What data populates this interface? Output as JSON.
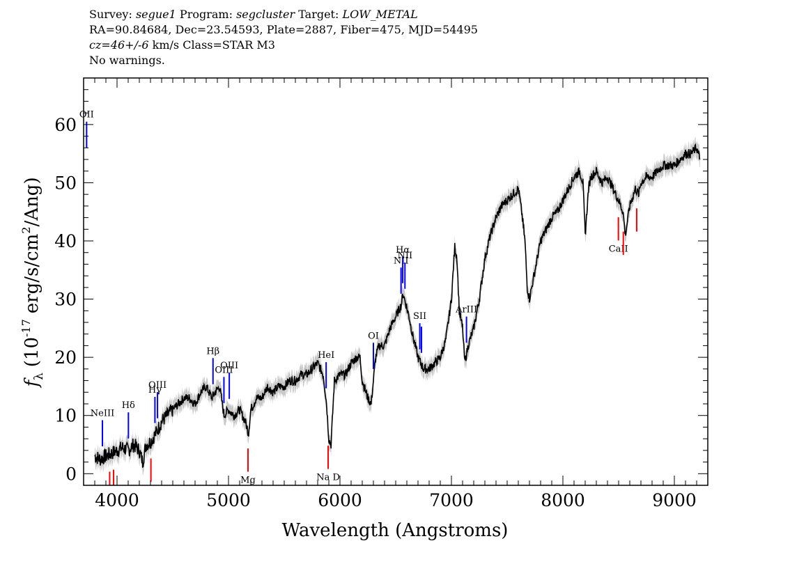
{
  "header": {
    "survey_label": "Survey:",
    "survey": "segue1",
    "program_label": "Program:",
    "program": "segcluster",
    "target_label": "Target:",
    "target": "LOW_METAL",
    "line2": "RA=90.84684, Dec=23.54593, Plate=2887, Fiber=475, MJD=54495",
    "cz": "cz=46+/-6",
    "line3_rest": "km/s Class=STAR M3",
    "line4": "No warnings."
  },
  "chart_data": {
    "type": "line",
    "title": "",
    "xlabel": "Wavelength (Angstroms)",
    "ylabel_main": "f",
    "ylabel_sub": "λ",
    "ylabel_rest": "(10",
    "ylabel_exp": "-17",
    "ylabel_units": "erg/s/cm",
    "ylabel_exp2": "2",
    "ylabel_tail": "/Ang)",
    "xlim": [
      3700,
      9300
    ],
    "ylim": [
      -2,
      68
    ],
    "grid": false,
    "x_ticks": [
      4000,
      5000,
      6000,
      7000,
      8000,
      9000
    ],
    "x_tick_labels": [
      "4000",
      "5000",
      "6000",
      "7000",
      "8000",
      "9000"
    ],
    "y_ticks": [
      0,
      10,
      20,
      30,
      40,
      50,
      60
    ],
    "y_tick_labels": [
      "0",
      "10",
      "20",
      "30",
      "40",
      "50",
      "60"
    ],
    "series": [
      {
        "color": "#000000",
        "error_color": "#c8c8c8",
        "x": [
          3800,
          3850,
          3900,
          3950,
          4000,
          4050,
          4100,
          4150,
          4200,
          4230,
          4260,
          4300,
          4350,
          4400,
          4450,
          4500,
          4550,
          4600,
          4650,
          4700,
          4750,
          4800,
          4850,
          4880,
          4920,
          4960,
          5000,
          5050,
          5100,
          5150,
          5180,
          5200,
          5250,
          5300,
          5350,
          5400,
          5450,
          5500,
          5550,
          5600,
          5650,
          5700,
          5750,
          5800,
          5850,
          5880,
          5900,
          5920,
          5950,
          6000,
          6050,
          6100,
          6150,
          6180,
          6200,
          6250,
          6280,
          6320,
          6350,
          6400,
          6450,
          6500,
          6550,
          6565,
          6580,
          6620,
          6650,
          6700,
          6750,
          6800,
          6850,
          6900,
          6950,
          7000,
          7030,
          7050,
          7070,
          7100,
          7120,
          7150,
          7200,
          7250,
          7300,
          7350,
          7400,
          7450,
          7500,
          7550,
          7600,
          7630,
          7660,
          7680,
          7700,
          7750,
          7800,
          7850,
          7900,
          7950,
          8000,
          8050,
          8100,
          8150,
          8180,
          8200,
          8230,
          8250,
          8300,
          8350,
          8400,
          8450,
          8500,
          8540,
          8560,
          8600,
          8650,
          8680,
          8700,
          8750,
          8800,
          8850,
          8900,
          8950,
          9000,
          9050,
          9100,
          9150,
          9200,
          9230
        ],
        "y": [
          3,
          2.5,
          3,
          3.5,
          4,
          4.5,
          4,
          5,
          4,
          2,
          5,
          5.5,
          7,
          9,
          10,
          11,
          12,
          13,
          13,
          12,
          14,
          15,
          13,
          14,
          15,
          10,
          11,
          10,
          11,
          9,
          7,
          11,
          13,
          13,
          15,
          14,
          15,
          15,
          16,
          16,
          17,
          17,
          18,
          19,
          17,
          12,
          6,
          5,
          16,
          17,
          17,
          19,
          20,
          20,
          16,
          13,
          12,
          20,
          22,
          22,
          25,
          27,
          29,
          31,
          30,
          27,
          24,
          20,
          18,
          18,
          19,
          20,
          23,
          30,
          39,
          37,
          28,
          25,
          19,
          22,
          25,
          30,
          37,
          41,
          44,
          46,
          47,
          48,
          49,
          45,
          40,
          32,
          30,
          35,
          40,
          42,
          44,
          45,
          47,
          49,
          51,
          52,
          50,
          41,
          49,
          51,
          52,
          50,
          51,
          49,
          47,
          45,
          41,
          46,
          49,
          48,
          50,
          51,
          51,
          52,
          53,
          53,
          53,
          54,
          55,
          55,
          56,
          54
        ]
      }
    ],
    "emission_lines": [
      {
        "label": "OII",
        "x": 3727
      },
      {
        "label": "NeIII",
        "x": 3869
      },
      {
        "label": "Hδ",
        "x": 4102
      },
      {
        "label": "Hγ",
        "x": 4340
      },
      {
        "label": "OIII",
        "x": 4363
      },
      {
        "label": "Hβ",
        "x": 4861
      },
      {
        "label": "OIII",
        "x": 4959
      },
      {
        "label": "OIII",
        "x": 5007
      },
      {
        "label": "HeI",
        "x": 5876
      },
      {
        "label": "OI",
        "x": 6300
      },
      {
        "label": "NII",
        "x": 6548
      },
      {
        "label": "Hα",
        "x": 6563
      },
      {
        "label": "NII",
        "x": 6583
      },
      {
        "label": "SII",
        "x": 6716
      },
      {
        "label": "SII",
        "x": 6731
      },
      {
        "label": "ArIII",
        "x": 7135
      }
    ],
    "absorption_lines": [
      {
        "label": "",
        "x": 3934
      },
      {
        "label": "",
        "x": 3969
      },
      {
        "label": "",
        "x": 4304
      },
      {
        "label": "Mg",
        "x": 5175
      },
      {
        "label": "Na D",
        "x": 5894
      },
      {
        "label": "CaII",
        "x": 8498
      },
      {
        "label": "",
        "x": 8542
      },
      {
        "label": "",
        "x": 8662
      }
    ],
    "emission_color": "#0000ff",
    "absorption_color": "#ff0000"
  }
}
